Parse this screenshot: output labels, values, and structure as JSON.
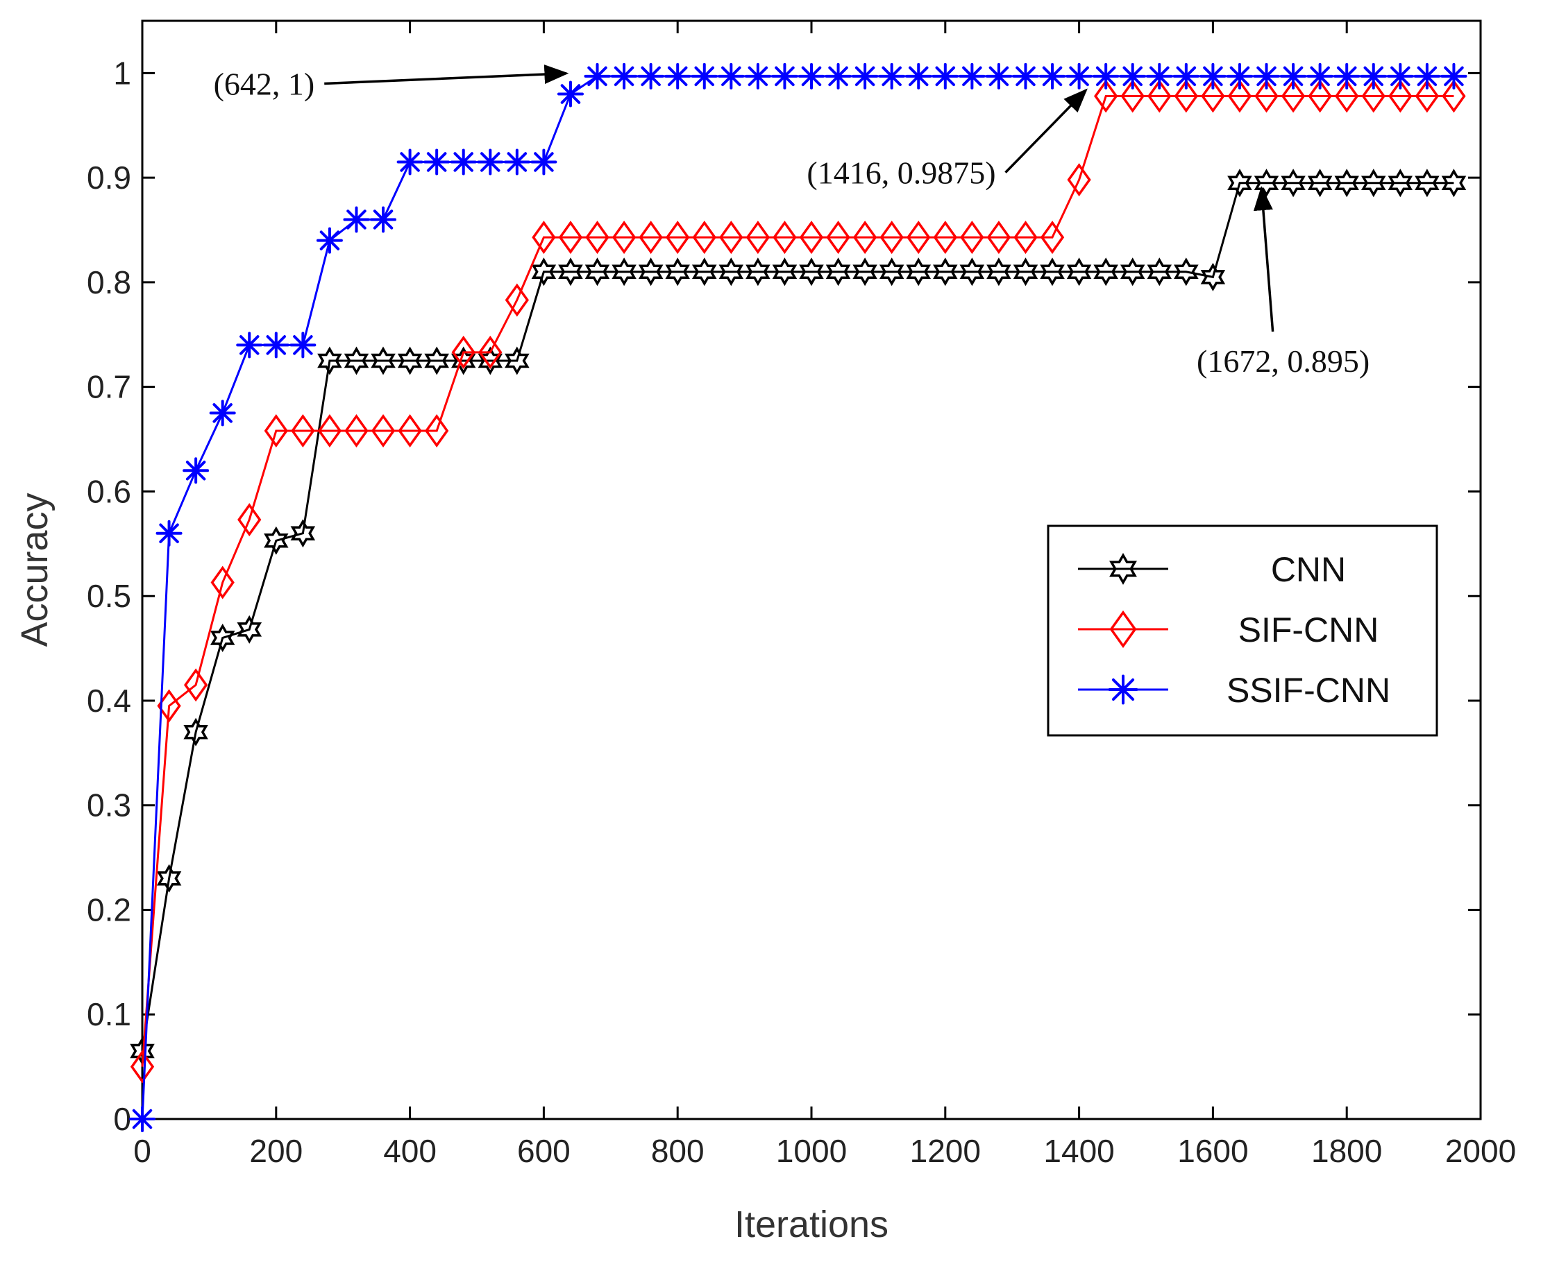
{
  "chart_data": {
    "type": "line",
    "title": "",
    "xlabel": "Iterations",
    "ylabel": "Accuracy",
    "xlim": [
      0,
      2000
    ],
    "ylim": [
      0,
      1.05
    ],
    "xticks": [
      0,
      200,
      400,
      600,
      800,
      1000,
      1200,
      1400,
      1600,
      1800,
      2000
    ],
    "xtick_labels": [
      "0",
      "200",
      "400",
      "600",
      "800",
      "1000",
      "1200",
      "1400",
      "1600",
      "1800",
      "2000"
    ],
    "yticks": [
      0,
      0.1,
      0.2,
      0.3,
      0.4,
      0.5,
      0.6,
      0.7,
      0.8,
      0.9,
      1
    ],
    "ytick_labels": [
      "0",
      "0.1",
      "0.2",
      "0.3",
      "0.4",
      "0.5",
      "0.6",
      "0.7",
      "0.8",
      "0.9",
      "1"
    ],
    "grid": false,
    "legend_position": "center-right",
    "series": [
      {
        "name": "CNN",
        "color": "#000000",
        "marker": "hexagram",
        "x": [
          0,
          40,
          80,
          120,
          160,
          200,
          240,
          280,
          320,
          360,
          400,
          440,
          480,
          520,
          560,
          600,
          640,
          680,
          720,
          760,
          800,
          840,
          880,
          920,
          960,
          1000,
          1040,
          1080,
          1120,
          1160,
          1200,
          1240,
          1280,
          1320,
          1360,
          1400,
          1440,
          1480,
          1520,
          1560,
          1600,
          1640,
          1680,
          1720,
          1760,
          1800,
          1840,
          1880,
          1920,
          1960
        ],
        "y": [
          0.065,
          0.23,
          0.37,
          0.46,
          0.468,
          0.553,
          0.56,
          0.725,
          0.725,
          0.725,
          0.725,
          0.725,
          0.725,
          0.725,
          0.725,
          0.81,
          0.81,
          0.81,
          0.81,
          0.81,
          0.81,
          0.81,
          0.81,
          0.81,
          0.81,
          0.81,
          0.81,
          0.81,
          0.81,
          0.81,
          0.81,
          0.81,
          0.81,
          0.81,
          0.81,
          0.81,
          0.81,
          0.81,
          0.81,
          0.81,
          0.805,
          0.895,
          0.895,
          0.895,
          0.895,
          0.895,
          0.895,
          0.895,
          0.895,
          0.895
        ]
      },
      {
        "name": "SIF-CNN",
        "color": "#ff0000",
        "marker": "diamond",
        "x": [
          0,
          40,
          80,
          120,
          160,
          200,
          240,
          280,
          320,
          360,
          400,
          440,
          480,
          520,
          560,
          600,
          640,
          680,
          720,
          760,
          800,
          840,
          880,
          920,
          960,
          1000,
          1040,
          1080,
          1120,
          1160,
          1200,
          1240,
          1280,
          1320,
          1360,
          1400,
          1440,
          1480,
          1520,
          1560,
          1600,
          1640,
          1680,
          1720,
          1760,
          1800,
          1840,
          1880,
          1920,
          1960
        ],
        "y": [
          0.05,
          0.395,
          0.415,
          0.513,
          0.573,
          0.658,
          0.658,
          0.658,
          0.658,
          0.658,
          0.658,
          0.658,
          0.733,
          0.733,
          0.783,
          0.843,
          0.843,
          0.843,
          0.843,
          0.843,
          0.843,
          0.843,
          0.843,
          0.843,
          0.843,
          0.843,
          0.843,
          0.843,
          0.843,
          0.843,
          0.843,
          0.843,
          0.843,
          0.843,
          0.843,
          0.898,
          0.978,
          0.978,
          0.978,
          0.978,
          0.978,
          0.978,
          0.978,
          0.978,
          0.978,
          0.978,
          0.978,
          0.978,
          0.978,
          0.978
        ]
      },
      {
        "name": "SSIF-CNN",
        "color": "#0000ff",
        "marker": "asterisk",
        "x": [
          0,
          40,
          80,
          120,
          160,
          200,
          240,
          280,
          320,
          360,
          400,
          440,
          480,
          520,
          560,
          600,
          640,
          680,
          720,
          760,
          800,
          840,
          880,
          920,
          960,
          1000,
          1040,
          1080,
          1120,
          1160,
          1200,
          1240,
          1280,
          1320,
          1360,
          1400,
          1440,
          1480,
          1520,
          1560,
          1600,
          1640,
          1680,
          1720,
          1760,
          1800,
          1840,
          1880,
          1920,
          1960
        ],
        "y": [
          0,
          0.56,
          0.62,
          0.675,
          0.74,
          0.74,
          0.74,
          0.84,
          0.86,
          0.86,
          0.915,
          0.915,
          0.915,
          0.915,
          0.915,
          0.915,
          0.98,
          0.997,
          0.997,
          0.997,
          0.997,
          0.997,
          0.997,
          0.997,
          0.997,
          0.997,
          0.997,
          0.997,
          0.997,
          0.997,
          0.997,
          0.997,
          0.997,
          0.997,
          0.997,
          0.997,
          0.997,
          0.997,
          0.997,
          0.997,
          0.997,
          0.997,
          0.997,
          0.997,
          0.997,
          0.997,
          0.997,
          0.997,
          0.997,
          0.997
        ]
      }
    ],
    "annotations": [
      {
        "text": "(642, 1)",
        "x": 642,
        "y": 1,
        "anchor_x": 272,
        "anchor_y": 0.99,
        "align": "end"
      },
      {
        "text": "(1416, 0.9875)",
        "x": 1416,
        "y": 0.9875,
        "anchor_x": 1290,
        "anchor_y": 0.905,
        "align": "end"
      },
      {
        "text": "(1672, 0.895)",
        "x": 1672,
        "y": 0.895,
        "anchor_x": 1705,
        "anchor_y": 0.725,
        "align": "middle"
      }
    ]
  }
}
